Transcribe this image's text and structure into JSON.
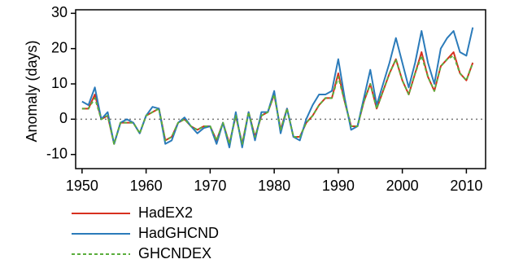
{
  "chart_data": {
    "type": "line",
    "y_label": "Anomaly (days)",
    "x": [
      1950,
      1951,
      1952,
      1953,
      1954,
      1955,
      1956,
      1957,
      1958,
      1959,
      1960,
      1961,
      1962,
      1963,
      1964,
      1965,
      1966,
      1967,
      1968,
      1969,
      1970,
      1971,
      1972,
      1973,
      1974,
      1975,
      1976,
      1977,
      1978,
      1979,
      1980,
      1981,
      1982,
      1983,
      1984,
      1985,
      1986,
      1987,
      1988,
      1989,
      1990,
      1991,
      1992,
      1993,
      1994,
      1995,
      1996,
      1997,
      1998,
      1999,
      2000,
      2001,
      2002,
      2003,
      2004,
      2005,
      2006,
      2007,
      2008,
      2009,
      2010,
      2011
    ],
    "series": [
      {
        "name": "HadEX2",
        "color": "#d7301f",
        "dash": false,
        "values": [
          3,
          3,
          7,
          0,
          1,
          -7,
          -1,
          -1,
          -1,
          -4,
          1,
          2,
          3,
          -6,
          -5,
          -1,
          0,
          -2,
          -3,
          -2,
          -2,
          -6,
          -1,
          -7,
          1,
          -7,
          2,
          -5,
          1,
          2,
          7,
          -3,
          3,
          -5,
          -5,
          -1,
          1,
          4,
          6,
          6,
          13,
          5,
          -2,
          -2,
          5,
          10,
          3,
          8,
          13,
          17,
          11,
          7,
          13,
          19,
          12,
          8,
          15,
          17,
          19,
          13,
          11,
          16
        ]
      },
      {
        "name": "HadGHCND",
        "color": "#2b7bba",
        "dash": false,
        "values": [
          5,
          4,
          9,
          0,
          2,
          -7,
          -1,
          0,
          -1,
          -4,
          1,
          3.5,
          3,
          -7,
          -6,
          -1,
          0.5,
          -2,
          -4,
          -2.5,
          -2,
          -7,
          -1,
          -8,
          2,
          -8,
          2,
          -6,
          2,
          2,
          8,
          -4,
          3,
          -5,
          -6,
          0,
          4,
          7,
          7,
          8,
          17,
          6,
          -3,
          -2,
          6,
          14,
          4,
          10,
          16,
          23,
          16,
          9,
          16,
          25,
          16,
          10,
          20,
          23,
          25,
          19,
          18,
          26
        ]
      },
      {
        "name": "GHCNDEX",
        "color": "#5aae3c",
        "dash": true,
        "values": [
          3,
          3,
          6,
          0,
          1,
          -7,
          -1,
          -1,
          -1,
          -4,
          1,
          2,
          3,
          -6,
          -5,
          -1,
          0,
          -2,
          -3,
          -2,
          -2,
          -6,
          -1,
          -7,
          1,
          -7,
          2,
          -5,
          1,
          2,
          7,
          -3,
          3,
          -5,
          -5,
          -1,
          1,
          4,
          6,
          6,
          12,
          5,
          -2,
          -2,
          5,
          10,
          3,
          8,
          13,
          17,
          11,
          7,
          13,
          18,
          12,
          8,
          15,
          17,
          18,
          13,
          11,
          16
        ]
      }
    ],
    "xlim": [
      1949,
      2013
    ],
    "xticks": [
      1950,
      1960,
      1970,
      1980,
      1990,
      2000,
      2010
    ],
    "ylim": [
      -14,
      31
    ],
    "yticks": [
      -10,
      0,
      10,
      20,
      30
    ],
    "zero_line": true,
    "legend": "bottom-left"
  }
}
